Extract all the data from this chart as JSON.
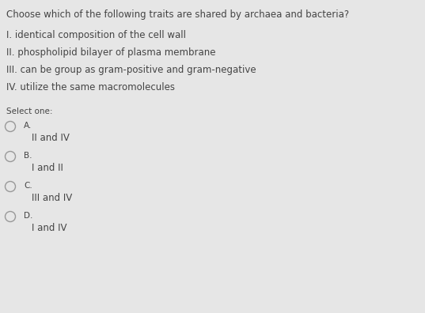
{
  "background_color": "#e6e6e6",
  "text_color": "#444444",
  "question": "Choose which of the following traits are shared by archaea and bacteria?",
  "traits": [
    "I. identical composition of the cell wall",
    "II. phospholipid bilayer of plasma membrane",
    "III. can be group as gram-positive and gram-negative",
    "IV. utilize the same macromolecules"
  ],
  "select_label": "Select one:",
  "options": [
    {
      "letter": "A.",
      "answer": "II and IV"
    },
    {
      "letter": "B.",
      "answer": "I and II"
    },
    {
      "letter": "C.",
      "answer": "III and IV"
    },
    {
      "letter": "D.",
      "answer": "I and IV"
    }
  ],
  "question_fontsize": 8.5,
  "trait_fontsize": 8.5,
  "select_fontsize": 7.5,
  "option_letter_fontsize": 7.5,
  "option_answer_fontsize": 8.5,
  "circle_color": "#999999"
}
